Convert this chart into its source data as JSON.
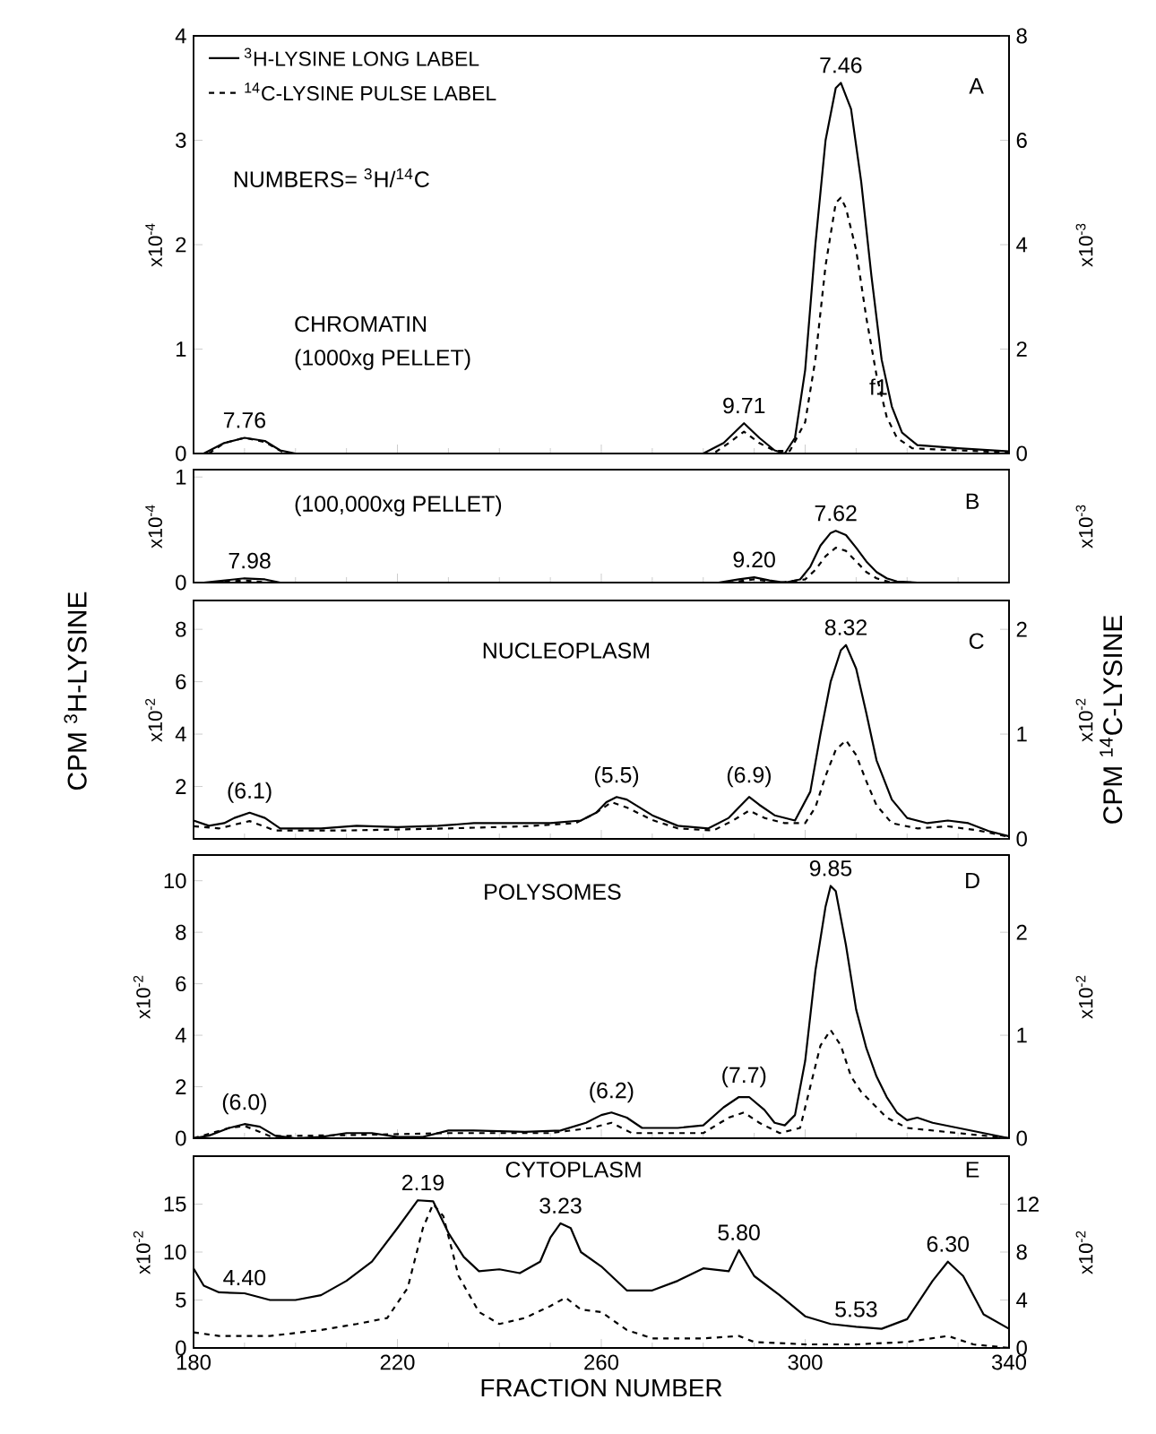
{
  "chart_data": [
    {
      "type": "line",
      "title": "CHROMATIN",
      "subtitle": "(1000xg PELLET)",
      "ylabel": "x10$^{-4}$",
      "y2label": "x10$^{-3}$",
      "xlim": [
        180,
        340
      ],
      "xticks": [
        {
          "value": 180,
          "label": null
        },
        {
          "value": 220,
          "label": null
        },
        {
          "value": 260,
          "label": null
        },
        {
          "value": 300,
          "label": null
        },
        {
          "value": 340,
          "label": null
        }
      ],
      "ylim": [
        0,
        4
      ],
      "yticks": [
        0,
        1,
        2,
        3,
        4
      ],
      "y2lim": [
        0,
        8
      ],
      "y2ticks": [
        0,
        2,
        4,
        6,
        8
      ],
      "tick_labels": "y",
      "legend": "top left",
      "annotations": [
        "A",
        "NUMBERS= $^{3}$H/$^{14}$C",
        {
          "text": "7.76",
          "x": 190,
          "y": 0.15
        },
        {
          "text": "9.71",
          "x": 288,
          "y": 0.29
        },
        {
          "text": "7.46",
          "x": 307,
          "y": 3.55
        },
        "f1"
      ],
      "series": [
        {
          "name": "$^{3}$H-LYSINE LONG LABEL",
          "color": "#000000",
          "line_style": "solid",
          "x": [
            182,
            186,
            190,
            194,
            197,
            200,
            280,
            284,
            288,
            291,
            294,
            296,
            298,
            300,
            302,
            304,
            306,
            307,
            309,
            311,
            313,
            315,
            317,
            319,
            322,
            330,
            340
          ],
          "values": [
            0,
            0.1,
            0.15,
            0.12,
            0.03,
            0,
            0,
            0.1,
            0.29,
            0.15,
            0.03,
            0,
            0.15,
            0.8,
            2.0,
            3.0,
            3.5,
            3.55,
            3.3,
            2.6,
            1.7,
            0.9,
            0.45,
            0.2,
            0.08,
            0.05,
            0.02
          ]
        },
        {
          "name": "$^{14}$C-LYSINE PULSE LABEL",
          "color": "#000000",
          "line_style": "dashed",
          "axis": "y2",
          "x": [
            183,
            186,
            190,
            194,
            198,
            282,
            285,
            288,
            291,
            294,
            297,
            300,
            302,
            304,
            306,
            307,
            308,
            310,
            312,
            314,
            316,
            318,
            321,
            330,
            340
          ],
          "values": [
            0,
            0.2,
            0.3,
            0.22,
            0,
            0,
            0.2,
            0.42,
            0.2,
            0.05,
            0.05,
            0.6,
            1.8,
            3.6,
            4.8,
            4.9,
            4.7,
            3.9,
            2.6,
            1.5,
            0.7,
            0.3,
            0.1,
            0.06,
            0.02
          ]
        }
      ]
    },
    {
      "type": "line",
      "title": "(100,000xg PELLET)",
      "ylabel": "x10$^{-4}$",
      "y2label": "x10$^{-3}$",
      "xlim": [
        180,
        340
      ],
      "xticks": [
        {
          "value": 180,
          "label": null
        },
        {
          "value": 220,
          "label": null
        },
        {
          "value": 260,
          "label": null
        },
        {
          "value": 300,
          "label": null
        },
        {
          "value": 340,
          "label": null
        }
      ],
      "ylim": [
        0,
        1.07
      ],
      "yticks": [
        0,
        1
      ],
      "tick_labels": "y",
      "annotations": [
        "B",
        {
          "text": "7.98",
          "x": 191,
          "y": 0.04
        },
        {
          "text": "9.20",
          "x": 290,
          "y": 0.05
        },
        {
          "text": "7.62",
          "x": 306,
          "y": 0.49
        }
      ],
      "series": [
        {
          "color": "#000000",
          "line_style": "solid",
          "x": [
            182,
            186,
            190,
            194,
            197,
            283,
            287,
            290,
            293,
            296,
            299,
            301,
            303,
            305,
            306,
            308,
            310,
            312,
            314,
            316,
            318,
            322,
            340
          ],
          "values": [
            0,
            0.02,
            0.04,
            0.03,
            0,
            0,
            0.03,
            0.05,
            0.02,
            0,
            0.03,
            0.15,
            0.35,
            0.47,
            0.49,
            0.45,
            0.33,
            0.2,
            0.1,
            0.04,
            0.01,
            0,
            0
          ]
        },
        {
          "color": "#000000",
          "line_style": "dashed",
          "x": [
            184,
            190,
            195,
            285,
            290,
            295,
            300,
            302,
            304,
            306,
            308,
            310,
            312,
            314,
            317,
            340
          ],
          "values": [
            0,
            0.02,
            0,
            0,
            0.03,
            0,
            0.03,
            0.12,
            0.25,
            0.33,
            0.3,
            0.2,
            0.1,
            0.04,
            0,
            0
          ]
        }
      ]
    },
    {
      "type": "line",
      "title": "NUCLEOPLASM",
      "ylabel": "x10$^{-2}$",
      "y2label": "x10$^{-2}$",
      "xlim": [
        180,
        340
      ],
      "xticks": [
        {
          "value": 180,
          "label": null
        },
        {
          "value": 220,
          "label": null
        },
        {
          "value": 260,
          "label": null
        },
        {
          "value": 300,
          "label": null
        },
        {
          "value": 340,
          "label": null
        }
      ],
      "ylim": [
        0,
        9.1
      ],
      "yticks": [
        2,
        4,
        6,
        8
      ],
      "y2lim": [
        0,
        2.275
      ],
      "y2ticks": [
        0,
        1,
        2
      ],
      "tick_labels": "y",
      "annotations": [
        "C",
        "CPM $^{3}$H-LYSINE",
        "CPM $^{14}$C-LYSINE",
        {
          "text": "(6.1)",
          "x": 191,
          "y": 1.0
        },
        {
          "text": "(5.5)",
          "x": 263,
          "y": 1.6
        },
        {
          "text": "(6.9)",
          "x": 289,
          "y": 1.6
        },
        {
          "text": "8.32",
          "x": 308,
          "y": 7.4
        }
      ],
      "series": [
        {
          "color": "#000000",
          "line_style": "solid",
          "x": [
            180,
            183,
            186,
            188,
            191,
            194,
            197,
            205,
            212,
            220,
            228,
            235,
            242,
            250,
            256,
            259,
            261,
            263,
            265,
            270,
            275,
            281,
            285,
            288,
            289,
            291,
            294,
            298,
            301,
            303,
            305,
            307,
            308,
            310,
            312,
            314,
            317,
            320,
            324,
            328,
            332,
            336,
            340
          ],
          "values": [
            0.7,
            0.5,
            0.6,
            0.8,
            1.0,
            0.8,
            0.4,
            0.4,
            0.5,
            0.45,
            0.5,
            0.6,
            0.6,
            0.6,
            0.7,
            1.0,
            1.4,
            1.6,
            1.5,
            0.9,
            0.5,
            0.4,
            0.8,
            1.4,
            1.6,
            1.3,
            0.9,
            0.7,
            1.8,
            4.0,
            6.0,
            7.2,
            7.4,
            6.5,
            4.8,
            3.0,
            1.5,
            0.8,
            0.6,
            0.7,
            0.6,
            0.3,
            0.1
          ]
        },
        {
          "color": "#000000",
          "line_style": "dashed",
          "axis": "y2",
          "x": [
            180,
            185,
            191,
            196,
            210,
            230,
            245,
            255,
            259,
            262,
            265,
            270,
            275,
            282,
            286,
            289,
            292,
            296,
            300,
            302,
            304,
            306,
            308,
            310,
            312,
            314,
            317,
            322,
            328,
            334,
            340
          ],
          "values": [
            0.12,
            0.1,
            0.17,
            0.08,
            0.08,
            0.1,
            0.12,
            0.15,
            0.25,
            0.35,
            0.3,
            0.18,
            0.1,
            0.08,
            0.18,
            0.27,
            0.2,
            0.15,
            0.15,
            0.3,
            0.6,
            0.85,
            0.94,
            0.8,
            0.55,
            0.32,
            0.15,
            0.1,
            0.12,
            0.08,
            0.02
          ]
        }
      ]
    },
    {
      "type": "line",
      "title": "POLYSOMES",
      "ylabel": "x10$^{-2}$",
      "y2label": "x10$^{-2}$",
      "xlim": [
        180,
        340
      ],
      "xticks": [
        {
          "value": 180,
          "label": null
        },
        {
          "value": 220,
          "label": null
        },
        {
          "value": 260,
          "label": null
        },
        {
          "value": 300,
          "label": null
        },
        {
          "value": 340,
          "label": null
        }
      ],
      "ylim": [
        0,
        11
      ],
      "yticks": [
        0,
        2,
        4,
        6,
        8,
        10
      ],
      "y2lim": [
        0,
        2.75
      ],
      "y2ticks": [
        0,
        1,
        2
      ],
      "tick_labels": "y",
      "annotations": [
        "D",
        {
          "text": "(6.0)",
          "x": 190,
          "y": 0.55
        },
        {
          "text": "(6.2)",
          "x": 262,
          "y": 1.0
        },
        {
          "text": "(7.7)",
          "x": 288,
          "y": 1.6
        },
        {
          "text": "9.85",
          "x": 305,
          "y": 9.8
        }
      ],
      "series": [
        {
          "color": "#000000",
          "line_style": "solid",
          "x": [
            180,
            183,
            187,
            190,
            193,
            196,
            200,
            205,
            210,
            215,
            220,
            225,
            230,
            235,
            245,
            252,
            257,
            260,
            262,
            265,
            268,
            275,
            280,
            284,
            287,
            289,
            292,
            294,
            296,
            298,
            300,
            302,
            304,
            305,
            306,
            308,
            310,
            312,
            314,
            316,
            318,
            320,
            322,
            325,
            330,
            335,
            340
          ],
          "values": [
            0,
            0.1,
            0.4,
            0.55,
            0.45,
            0.1,
            0,
            0.05,
            0.2,
            0.2,
            0.05,
            0.05,
            0.3,
            0.3,
            0.25,
            0.3,
            0.6,
            0.9,
            1.0,
            0.8,
            0.4,
            0.4,
            0.5,
            1.2,
            1.6,
            1.6,
            1.1,
            0.6,
            0.5,
            0.9,
            3.0,
            6.5,
            9.0,
            9.8,
            9.6,
            7.5,
            5.0,
            3.5,
            2.4,
            1.6,
            1.0,
            0.7,
            0.8,
            0.6,
            0.4,
            0.2,
            0
          ]
        },
        {
          "color": "#000000",
          "line_style": "dashed",
          "axis": "y2",
          "x": [
            180,
            187,
            190,
            195,
            210,
            230,
            250,
            258,
            262,
            266,
            280,
            285,
            288,
            291,
            295,
            299,
            301,
            303,
            305,
            307,
            309,
            311,
            313,
            316,
            320,
            330,
            340
          ],
          "values": [
            0,
            0.1,
            0.12,
            0.02,
            0.03,
            0.05,
            0.05,
            0.1,
            0.15,
            0.05,
            0.05,
            0.2,
            0.25,
            0.15,
            0.05,
            0.1,
            0.5,
            0.9,
            1.05,
            0.9,
            0.6,
            0.45,
            0.35,
            0.2,
            0.1,
            0.05,
            0
          ]
        }
      ]
    },
    {
      "type": "line",
      "title": "CYTOPLASM",
      "xlabel": "FRACTION NUMBER",
      "ylabel": "x10$^{-2}$",
      "y2label": "x10$^{-2}$",
      "xlim": [
        180,
        340
      ],
      "xticks": [
        180,
        220,
        260,
        300,
        340
      ],
      "ylim": [
        0,
        20
      ],
      "yticks": [
        0,
        5,
        10,
        15
      ],
      "y2lim": [
        0,
        16
      ],
      "y2ticks": [
        0,
        4,
        8,
        12
      ],
      "annotations": [
        "E",
        {
          "text": "2.19",
          "x": 225,
          "y": 15.4
        },
        {
          "text": "3.23",
          "x": 252,
          "y": 13
        },
        {
          "text": "5.80",
          "x": 287,
          "y": 10.2
        },
        {
          "text": "4.40",
          "x": 190,
          "y": 5.5
        },
        {
          "text": "5.53",
          "x": 310,
          "y": 2.2
        },
        {
          "text": "6.30",
          "x": 328,
          "y": 9.0
        }
      ],
      "series": [
        {
          "color": "#000000",
          "line_style": "solid",
          "x": [
            180,
            182,
            185,
            190,
            195,
            200,
            205,
            210,
            215,
            220,
            224,
            227,
            230,
            233,
            236,
            240,
            244,
            248,
            250,
            252,
            254,
            256,
            260,
            265,
            270,
            275,
            280,
            285,
            287,
            290,
            295,
            300,
            305,
            310,
            315,
            320,
            325,
            328,
            331,
            335,
            340
          ],
          "values": [
            8.3,
            6.5,
            5.8,
            5.7,
            5.0,
            5.0,
            5.5,
            7.0,
            9.0,
            12.5,
            15.4,
            15.3,
            12.0,
            9.5,
            8.0,
            8.2,
            7.8,
            9.0,
            11.5,
            13,
            12.5,
            10.0,
            8.5,
            6.0,
            6.0,
            7.0,
            8.3,
            8.0,
            10.2,
            7.5,
            5.5,
            3.3,
            2.5,
            2.2,
            2.0,
            3.0,
            7.0,
            9.0,
            7.5,
            3.5,
            2.0
          ]
        },
        {
          "color": "#000000",
          "line_style": "dashed",
          "axis": "y2",
          "x": [
            180,
            185,
            195,
            205,
            212,
            218,
            222,
            225,
            227,
            229,
            232,
            236,
            240,
            245,
            250,
            253,
            256,
            260,
            265,
            270,
            280,
            287,
            290,
            300,
            310,
            320,
            328,
            333,
            340
          ],
          "values": [
            1.3,
            1.0,
            1.0,
            1.5,
            2.0,
            2.5,
            5,
            10,
            12,
            11,
            6,
            3,
            2.0,
            2.5,
            3.5,
            4.2,
            3.2,
            3,
            1.5,
            0.8,
            0.8,
            1.0,
            0.5,
            0.3,
            0.3,
            0.5,
            1.0,
            0.3,
            0
          ]
        }
      ]
    }
  ]
}
